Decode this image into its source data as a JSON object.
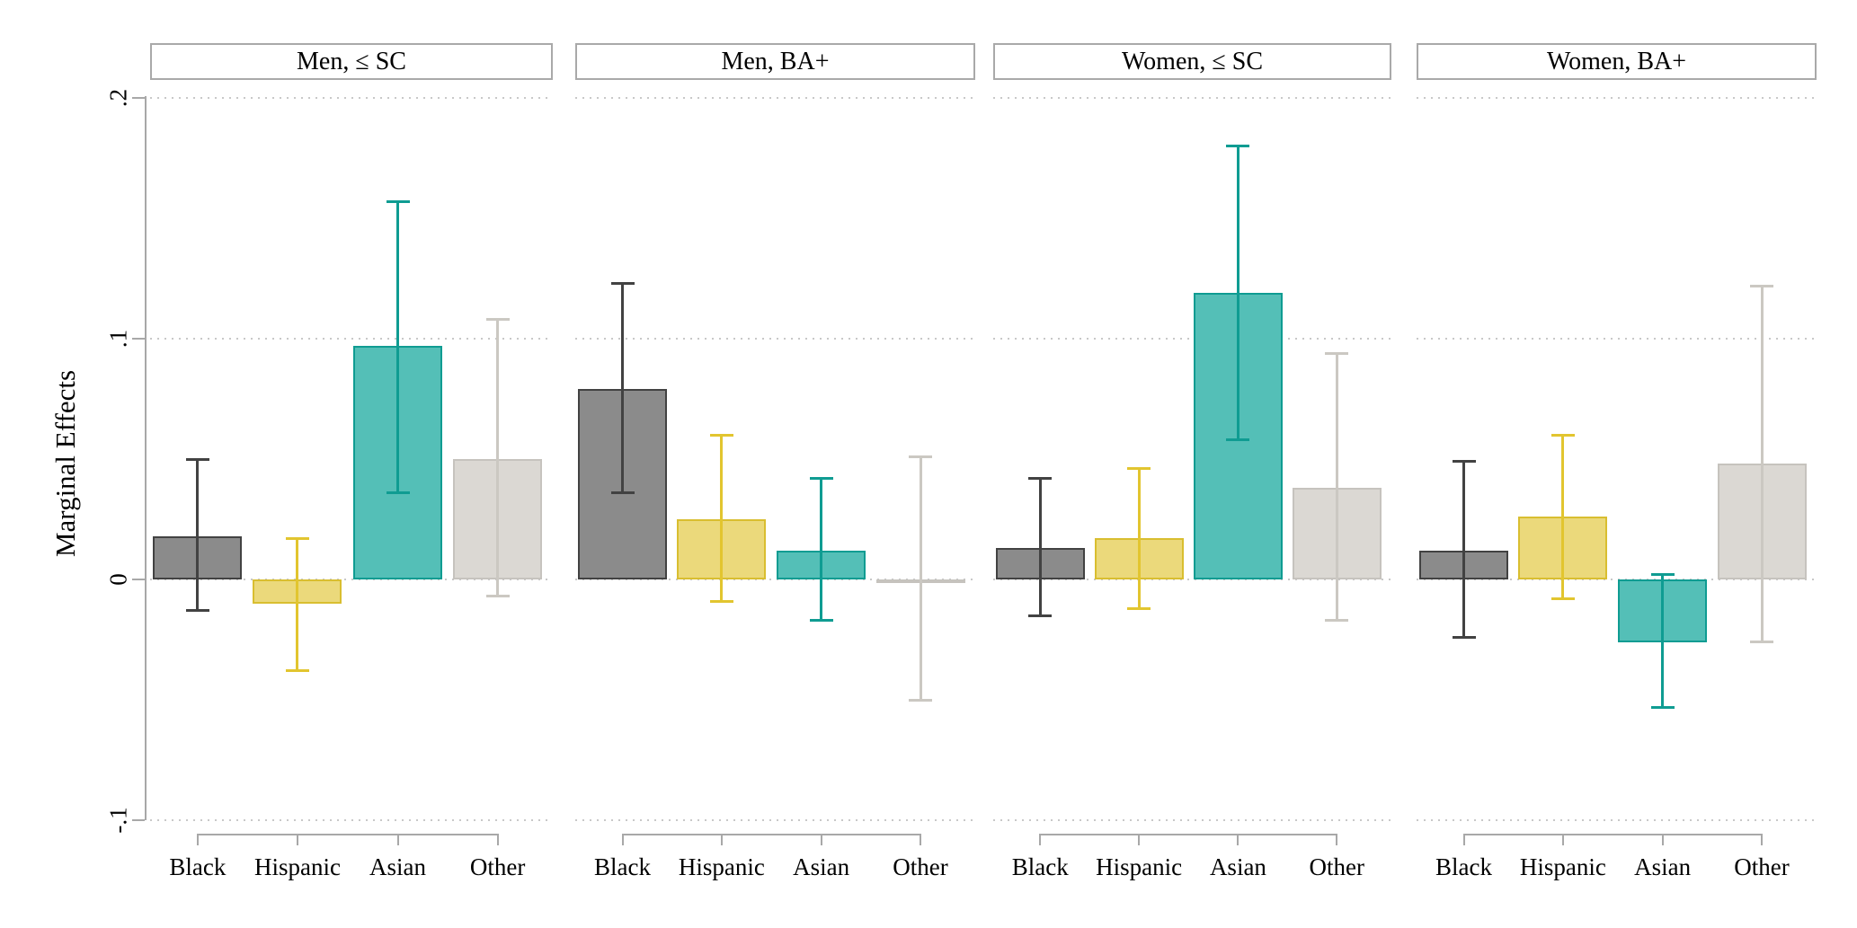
{
  "figure": {
    "background": "#ffffff"
  },
  "chart_data": {
    "type": "bar",
    "title": "",
    "ylabel": "Marginal Effects",
    "xlabel": "",
    "categories": [
      "Black",
      "Hispanic",
      "Asian",
      "Other"
    ],
    "y_axis": {
      "ticks": [
        {
          "label": ".2",
          "value": 0.2
        },
        {
          "label": ".1",
          "value": 0.1
        },
        {
          "label": "0",
          "value": 0
        },
        {
          "label": "-.1",
          "value": -0.1
        }
      ],
      "range": [
        -0.105,
        0.205
      ],
      "gridlines": "dotted"
    },
    "legend_position": "none",
    "error_bars": true,
    "series_styles": {
      "Black": {
        "fill": "#8B8B8B",
        "stroke": "#424242",
        "error": "#424242"
      },
      "Hispanic": {
        "fill": "#EBD97B",
        "stroke": "#D9BE30",
        "error": "#E2C52F"
      },
      "Asian": {
        "fill": "#54BFB7",
        "stroke": "#0F9C92",
        "error": "#0F9C92"
      },
      "Other": {
        "fill": "#DBD8D3",
        "stroke": "#C6C3BE",
        "error": "#CBC8C2"
      }
    },
    "panels": [
      {
        "label": "Men, ≤ SC",
        "bars": [
          {
            "category": "Black",
            "value": 0.018,
            "ci_low": -0.013,
            "ci_high": 0.05
          },
          {
            "category": "Hispanic",
            "value": -0.01,
            "ci_low": -0.038,
            "ci_high": 0.017
          },
          {
            "category": "Asian",
            "value": 0.097,
            "ci_low": 0.036,
            "ci_high": 0.157
          },
          {
            "category": "Other",
            "value": 0.05,
            "ci_low": -0.007,
            "ci_high": 0.108
          }
        ]
      },
      {
        "label": "Men, BA+",
        "bars": [
          {
            "category": "Black",
            "value": 0.079,
            "ci_low": 0.036,
            "ci_high": 0.123
          },
          {
            "category": "Hispanic",
            "value": 0.025,
            "ci_low": -0.009,
            "ci_high": 0.06
          },
          {
            "category": "Asian",
            "value": 0.012,
            "ci_low": -0.017,
            "ci_high": 0.042
          },
          {
            "category": "Other",
            "value": -0.001,
            "ci_low": -0.05,
            "ci_high": 0.051
          }
        ]
      },
      {
        "label": "Women, ≤ SC",
        "bars": [
          {
            "category": "Black",
            "value": 0.013,
            "ci_low": -0.015,
            "ci_high": 0.042
          },
          {
            "category": "Hispanic",
            "value": 0.017,
            "ci_low": -0.012,
            "ci_high": 0.046
          },
          {
            "category": "Asian",
            "value": 0.119,
            "ci_low": 0.058,
            "ci_high": 0.18
          },
          {
            "category": "Other",
            "value": 0.038,
            "ci_low": -0.017,
            "ci_high": 0.094
          }
        ]
      },
      {
        "label": "Women, BA+",
        "bars": [
          {
            "category": "Black",
            "value": 0.012,
            "ci_low": -0.024,
            "ci_high": 0.049
          },
          {
            "category": "Hispanic",
            "value": 0.026,
            "ci_low": -0.008,
            "ci_high": 0.06
          },
          {
            "category": "Asian",
            "value": -0.026,
            "ci_low": -0.053,
            "ci_high": 0.002
          },
          {
            "category": "Other",
            "value": 0.048,
            "ci_low": -0.026,
            "ci_high": 0.122
          }
        ]
      }
    ]
  }
}
